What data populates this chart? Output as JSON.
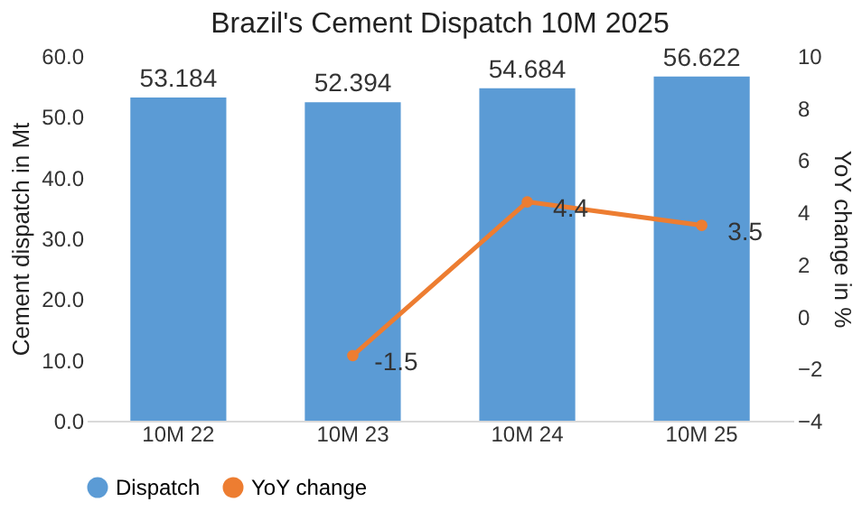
{
  "chart_data": {
    "type": "bar",
    "title": "Brazil's Cement  Dispatch 10M 2025",
    "ylabel": "Cement dispatch in Mt",
    "y2label": "YoY change in %",
    "categories": [
      "10M 22",
      "10M 23",
      "10M 24",
      "10M 25"
    ],
    "series": [
      {
        "name": "Dispatch",
        "color": "#5b9bd5",
        "values": [
          53.184,
          52.394,
          54.684,
          56.622
        ]
      },
      {
        "name": "YoY change",
        "type": "line",
        "axis": "y2",
        "color": "#ed7d31",
        "marker": "circle",
        "values": [
          null,
          -1.5,
          4.4,
          3.5
        ]
      }
    ],
    "ylim": [
      0,
      60
    ],
    "yticks": [
      {
        "value": 0,
        "label": "0.0"
      },
      {
        "value": 10,
        "label": "10.0"
      },
      {
        "value": 20,
        "label": "20.0"
      },
      {
        "value": 30,
        "label": "30.0"
      },
      {
        "value": 40,
        "label": "40.0"
      },
      {
        "value": 50,
        "label": "50.0"
      },
      {
        "value": 60,
        "label": "60.0"
      }
    ],
    "y2lim": [
      -4,
      10
    ],
    "y2ticks": [
      -4,
      -2,
      0,
      2,
      4,
      6,
      8,
      10
    ],
    "data_labels": true,
    "legend": "bottom",
    "grid": false
  }
}
